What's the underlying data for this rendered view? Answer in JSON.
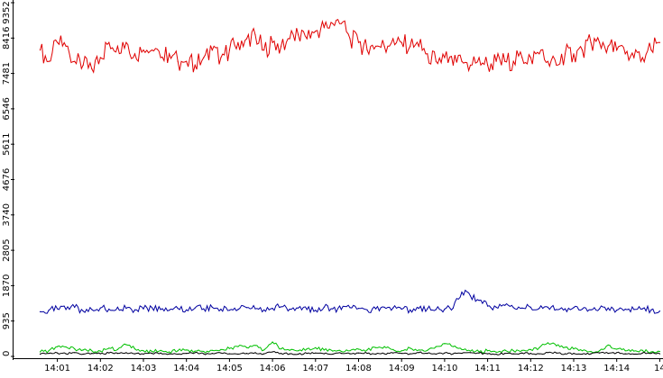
{
  "chart_data": {
    "type": "line",
    "title": "",
    "xlabel": "",
    "ylabel": "",
    "x_tick_labels": [
      "14:01",
      "14:02",
      "14:03",
      "14:04",
      "14:05",
      "14:06",
      "14:07",
      "14:08",
      "14:09",
      "14:10",
      "14:11",
      "14:12",
      "14:13",
      "14:14",
      "14"
    ],
    "y_tick_labels": [
      "0",
      "935",
      "1870",
      "2805",
      "3740",
      "4676",
      "5611",
      "6546",
      "7481",
      "8416",
      "9352"
    ],
    "ylim": [
      0,
      9352
    ],
    "x_range_minutes": [
      0.6,
      15.0
    ],
    "grid": false,
    "legend": "none",
    "series": [
      {
        "color": "#e00000",
        "x": [
          0.6,
          0.8,
          1.0,
          1.2,
          1.4,
          1.6,
          1.8,
          2.0,
          2.2,
          2.4,
          2.6,
          2.8,
          3.0,
          3.2,
          3.4,
          3.6,
          3.8,
          4.0,
          4.2,
          4.4,
          4.6,
          4.8,
          5.0,
          5.2,
          5.4,
          5.6,
          5.8,
          6.0,
          6.2,
          6.4,
          6.6,
          6.8,
          7.0,
          7.2,
          7.4,
          7.6,
          7.8,
          8.0,
          8.2,
          8.4,
          8.6,
          8.8,
          9.0,
          9.2,
          9.4,
          9.6,
          9.8,
          10.0,
          10.2,
          10.4,
          10.6,
          10.8,
          11.0,
          11.2,
          11.4,
          11.6,
          11.8,
          12.0,
          12.2,
          12.4,
          12.6,
          12.8,
          13.0,
          13.2,
          13.4,
          13.6,
          13.8,
          14.0,
          14.2,
          14.4,
          14.6,
          14.8,
          15.0
        ],
        "values": [
          8100,
          7800,
          8300,
          8200,
          7800,
          7700,
          7600,
          7900,
          8300,
          8200,
          8300,
          8000,
          8100,
          8100,
          7900,
          8000,
          7800,
          7800,
          7700,
          7900,
          8100,
          7900,
          8100,
          8300,
          8400,
          8500,
          8100,
          8300,
          8200,
          8400,
          8500,
          8400,
          8600,
          8700,
          8800,
          8800,
          8400,
          8300,
          8100,
          8200,
          8200,
          8400,
          8300,
          8200,
          8200,
          8000,
          7800,
          7900,
          7700,
          7800,
          7700,
          7900,
          7700,
          7800,
          7800,
          7800,
          7900,
          7900,
          8000,
          7800,
          7700,
          8000,
          8000,
          8100,
          8300,
          8300,
          8200,
          8100,
          8000,
          7900,
          7900,
          8100,
          8300
        ]
      },
      {
        "color": "#0000a0",
        "x": [
          0.6,
          0.8,
          1.0,
          1.2,
          1.4,
          1.6,
          1.8,
          2.0,
          2.2,
          2.4,
          2.6,
          2.8,
          3.0,
          3.2,
          3.4,
          3.6,
          3.8,
          4.0,
          4.2,
          4.4,
          4.6,
          4.8,
          5.0,
          5.2,
          5.4,
          5.6,
          5.8,
          6.0,
          6.2,
          6.4,
          6.6,
          6.8,
          7.0,
          7.2,
          7.4,
          7.6,
          7.8,
          8.0,
          8.2,
          8.4,
          8.6,
          8.8,
          9.0,
          9.2,
          9.4,
          9.6,
          9.8,
          10.0,
          10.2,
          10.4,
          10.6,
          10.8,
          11.0,
          11.2,
          11.4,
          11.6,
          11.8,
          12.0,
          12.2,
          12.4,
          12.6,
          12.8,
          13.0,
          13.2,
          13.4,
          13.6,
          13.8,
          14.0,
          14.2,
          14.4,
          14.6,
          14.8,
          15.0
        ],
        "values": [
          1180,
          1220,
          1260,
          1240,
          1300,
          1200,
          1240,
          1280,
          1250,
          1300,
          1270,
          1230,
          1260,
          1290,
          1240,
          1220,
          1270,
          1230,
          1280,
          1260,
          1300,
          1250,
          1220,
          1240,
          1290,
          1260,
          1230,
          1270,
          1310,
          1250,
          1280,
          1240,
          1220,
          1300,
          1260,
          1240,
          1290,
          1270,
          1230,
          1260,
          1300,
          1280,
          1250,
          1230,
          1270,
          1260,
          1240,
          1250,
          1280,
          1700,
          1600,
          1480,
          1330,
          1300,
          1350,
          1290,
          1280,
          1300,
          1270,
          1300,
          1240,
          1260,
          1290,
          1250,
          1230,
          1260,
          1280,
          1220,
          1250,
          1240,
          1260,
          1230,
          1200
        ]
      },
      {
        "color": "#00c000",
        "x": [
          0.6,
          0.8,
          1.0,
          1.2,
          1.4,
          1.6,
          1.8,
          2.0,
          2.2,
          2.4,
          2.6,
          2.8,
          3.0,
          3.2,
          3.4,
          3.6,
          3.8,
          4.0,
          4.2,
          4.4,
          4.6,
          4.8,
          5.0,
          5.2,
          5.4,
          5.6,
          5.8,
          6.0,
          6.2,
          6.4,
          6.6,
          6.8,
          7.0,
          7.2,
          7.4,
          7.6,
          7.8,
          8.0,
          8.2,
          8.4,
          8.6,
          8.8,
          9.0,
          9.2,
          9.4,
          9.6,
          9.8,
          10.0,
          10.2,
          10.4,
          10.6,
          10.8,
          11.0,
          11.2,
          11.4,
          11.6,
          11.8,
          12.0,
          12.2,
          12.4,
          12.6,
          12.8,
          13.0,
          13.2,
          13.4,
          13.6,
          13.8,
          14.0,
          14.2,
          14.4,
          14.6,
          14.8,
          15.0
        ],
        "values": [
          120,
          150,
          260,
          250,
          200,
          170,
          150,
          140,
          220,
          180,
          310,
          200,
          150,
          130,
          160,
          120,
          150,
          170,
          140,
          130,
          160,
          180,
          210,
          260,
          230,
          290,
          170,
          380,
          200,
          160,
          150,
          200,
          230,
          170,
          140,
          130,
          150,
          190,
          170,
          230,
          260,
          180,
          150,
          220,
          170,
          160,
          260,
          340,
          260,
          180,
          140,
          120,
          150,
          110,
          170,
          150,
          160,
          180,
          230,
          360,
          280,
          240,
          200,
          150,
          130,
          150,
          300,
          190,
          150,
          140,
          160,
          120,
          130
        ]
      },
      {
        "color": "#000000",
        "x": [
          0.6,
          0.8,
          1.0,
          1.2,
          1.4,
          1.6,
          1.8,
          2.0,
          2.2,
          2.4,
          2.6,
          2.8,
          3.0,
          3.2,
          3.4,
          3.6,
          3.8,
          4.0,
          4.2,
          4.4,
          4.6,
          4.8,
          5.0,
          5.2,
          5.4,
          5.6,
          5.8,
          6.0,
          6.2,
          6.4,
          6.6,
          6.8,
          7.0,
          7.2,
          7.4,
          7.6,
          7.8,
          8.0,
          8.2,
          8.4,
          8.6,
          8.8,
          9.0,
          9.2,
          9.4,
          9.6,
          9.8,
          10.0,
          10.2,
          10.4,
          10.6,
          10.8,
          11.0,
          11.2,
          11.4,
          11.6,
          11.8,
          12.0,
          12.2,
          12.4,
          12.6,
          12.8,
          13.0,
          13.2,
          13.4,
          13.6,
          13.8,
          14.0,
          14.2,
          14.4,
          14.6,
          14.8,
          15.0
        ],
        "values": [
          60,
          80,
          90,
          70,
          100,
          60,
          80,
          70,
          90,
          80,
          100,
          70,
          60,
          80,
          90,
          70,
          60,
          80,
          100,
          70,
          80,
          90,
          70,
          60,
          80,
          100,
          70,
          120,
          80,
          70,
          60,
          80,
          90,
          70,
          60,
          80,
          70,
          90,
          80,
          60,
          70,
          90,
          80,
          70,
          100,
          80,
          60,
          90,
          70,
          80,
          100,
          90,
          70,
          60,
          80,
          70,
          90,
          80,
          70,
          100,
          90,
          70,
          80,
          60,
          70,
          90,
          80,
          100,
          70,
          60,
          90,
          80,
          70
        ]
      }
    ]
  }
}
